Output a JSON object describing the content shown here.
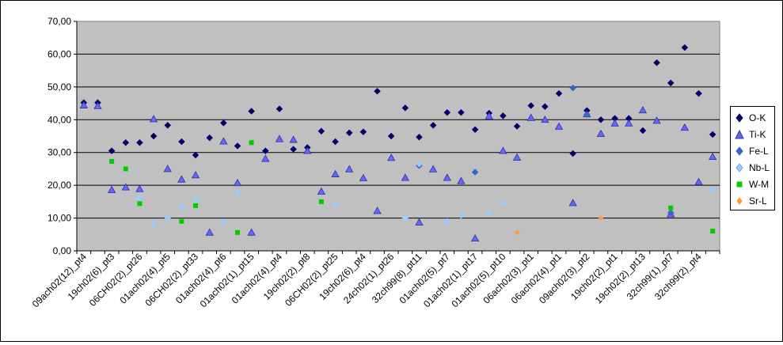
{
  "chart_data": {
    "type": "scatter",
    "ylim": [
      0,
      70
    ],
    "yticks": [
      "0,00",
      "10,00",
      "20,00",
      "30,00",
      "40,00",
      "50,00",
      "60,00",
      "70,00"
    ],
    "xtick_labels": [
      "09ach02(12)_pt4",
      "19ch02(6)_pt3",
      "06CH02(2)_pt26",
      "01ach02(4)_pt5",
      "06CH02(2)_pt33",
      "01ach02(4)_pt6",
      "01ach02(1)_pt15",
      "01ach02(4)_pt4",
      "19ch02(2)_pt8",
      "06CH02(2)_pt25",
      "19ch02(6)_pt4",
      "24ch02(1)_pt26",
      "32ch99(8)_pt11",
      "01ach02(5)_pt7",
      "01ach02(1)_pt17",
      "01ach02(5)_pt10",
      "06ach02(3)_pt1",
      "06ach02(4)_pt1",
      "09ach02(3)_pt2",
      "19ch02(2)_pt1",
      "19ch02(2)_pt13",
      "32ch99(1)_pt7",
      "32ch99(2)_pt4"
    ],
    "n_points": 46,
    "series": [
      {
        "name": "O-K",
        "marker": "diamond",
        "color": "#000066",
        "points": [
          [
            1,
            45.2
          ],
          [
            2,
            45.2
          ],
          [
            3,
            30.5
          ],
          [
            4,
            33
          ],
          [
            5,
            33
          ],
          [
            6,
            35
          ],
          [
            7,
            38.3
          ],
          [
            8,
            33.3
          ],
          [
            9,
            29.2
          ],
          [
            10,
            34.5
          ],
          [
            11,
            39
          ],
          [
            12,
            32
          ],
          [
            13,
            42.6
          ],
          [
            14,
            30.5
          ],
          [
            15,
            43.3
          ],
          [
            16,
            31
          ],
          [
            17,
            31.5
          ],
          [
            18,
            36.5
          ],
          [
            19,
            33.3
          ],
          [
            20,
            36
          ],
          [
            21,
            36.3
          ],
          [
            22,
            48.7
          ],
          [
            23,
            35
          ],
          [
            24,
            43.6
          ],
          [
            25,
            34.7
          ],
          [
            26,
            38.3
          ],
          [
            27,
            42.2
          ],
          [
            28,
            42.2
          ],
          [
            29,
            37
          ],
          [
            30,
            42
          ],
          [
            31,
            41.2
          ],
          [
            32,
            38
          ],
          [
            33,
            44.3
          ],
          [
            34,
            44
          ],
          [
            35,
            48
          ],
          [
            36,
            29.7
          ],
          [
            37,
            42.8
          ],
          [
            38,
            40
          ],
          [
            39,
            40.4
          ],
          [
            40,
            40.4
          ],
          [
            41,
            36.7
          ],
          [
            42,
            57.4
          ],
          [
            43,
            51.2
          ],
          [
            44,
            62
          ],
          [
            45,
            48
          ],
          [
            46,
            35.5
          ]
        ]
      },
      {
        "name": "Ti-K",
        "marker": "triangle",
        "color": "#6666ff",
        "points": [
          [
            1,
            44.4
          ],
          [
            2,
            44.2
          ],
          [
            3,
            18.6
          ],
          [
            4,
            19.4
          ],
          [
            5,
            18.9
          ],
          [
            6,
            40.2
          ],
          [
            7,
            25
          ],
          [
            8,
            21.8
          ],
          [
            9,
            23.1
          ],
          [
            10,
            5.6
          ],
          [
            11,
            33.4
          ],
          [
            12,
            20.7
          ],
          [
            13,
            5.6
          ],
          [
            14,
            28.1
          ],
          [
            15,
            34.1
          ],
          [
            16,
            33.9
          ],
          [
            17,
            30.5
          ],
          [
            18,
            18.1
          ],
          [
            19,
            23.4
          ],
          [
            20,
            24.9
          ],
          [
            21,
            22.2
          ],
          [
            22,
            12.2
          ],
          [
            23,
            28.4
          ],
          [
            24,
            22.3
          ],
          [
            25,
            8.7
          ],
          [
            26,
            24.9
          ],
          [
            27,
            22.3
          ],
          [
            28,
            21.3
          ],
          [
            29,
            3.8
          ],
          [
            30,
            41.1
          ],
          [
            31,
            30.5
          ],
          [
            32,
            28.5
          ],
          [
            33,
            40.6
          ],
          [
            34,
            40
          ],
          [
            35,
            37.9
          ],
          [
            36,
            14.6
          ],
          [
            37,
            41.7
          ],
          [
            38,
            35.7
          ],
          [
            39,
            38.9
          ],
          [
            40,
            38.9
          ],
          [
            41,
            42.9
          ],
          [
            42,
            39.7
          ],
          [
            43,
            11.2
          ],
          [
            44,
            37.6
          ],
          [
            45,
            21
          ],
          [
            46,
            28.7
          ]
        ]
      },
      {
        "name": "Fe-L",
        "marker": "diamond",
        "color": "#3366cc",
        "points": [
          [
            25,
            26
          ],
          [
            29,
            24
          ],
          [
            36,
            49.7
          ],
          [
            37,
            41.6
          ],
          [
            43,
            11.6
          ]
        ]
      },
      {
        "name": "Nb-L",
        "marker": "diamond",
        "color": "#99ccff",
        "points": [
          [
            5,
            16
          ],
          [
            6,
            8.2
          ],
          [
            7,
            10.1
          ],
          [
            8,
            13.5
          ],
          [
            9,
            15.5
          ],
          [
            11,
            8.7
          ],
          [
            12,
            17.8
          ],
          [
            19,
            14.3
          ],
          [
            24,
            10
          ],
          [
            25,
            26.5
          ],
          [
            27,
            9
          ],
          [
            28,
            10.8
          ],
          [
            30,
            11.4
          ],
          [
            31,
            14.5
          ],
          [
            46,
            18.7
          ]
        ]
      },
      {
        "name": "W-M",
        "marker": "square",
        "color": "#00cc00",
        "points": [
          [
            3,
            27.3
          ],
          [
            4,
            25
          ],
          [
            5,
            14.4
          ],
          [
            8,
            9
          ],
          [
            9,
            13.8
          ],
          [
            12,
            5.6
          ],
          [
            13,
            33
          ],
          [
            18,
            15
          ],
          [
            43,
            13.1
          ],
          [
            46,
            6
          ]
        ]
      },
      {
        "name": "Sr-L",
        "marker": "diamond",
        "color": "#ff9933",
        "points": [
          [
            32,
            5.6
          ],
          [
            38,
            10
          ]
        ]
      }
    ]
  }
}
